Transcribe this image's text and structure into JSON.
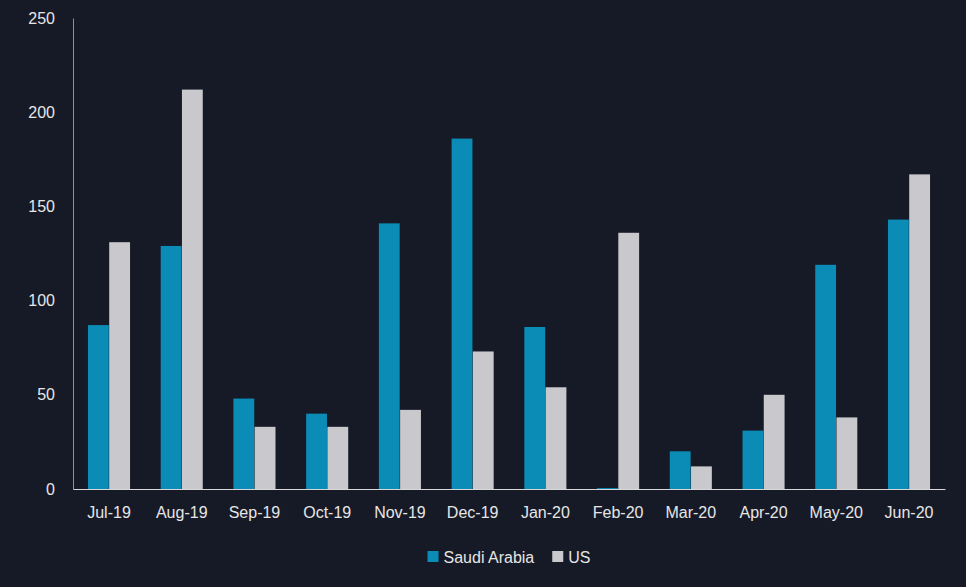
{
  "chart_data": {
    "type": "bar",
    "categories": [
      "Jul-19",
      "Aug-19",
      "Sep-19",
      "Oct-19",
      "Nov-19",
      "Dec-19",
      "Jan-20",
      "Feb-20",
      "Mar-20",
      "Apr-20",
      "May-20",
      "Jun-20"
    ],
    "series": [
      {
        "name": "Saudi Arabia",
        "color": "#0a8cb6",
        "values": [
          87,
          129,
          48,
          40,
          141,
          186,
          86,
          0.5,
          20,
          31,
          119,
          143
        ]
      },
      {
        "name": "US",
        "color": "#c9c9cd",
        "values": [
          131,
          212,
          33,
          33,
          42,
          73,
          54,
          136,
          12,
          50,
          38,
          167
        ]
      }
    ],
    "ylim": [
      0,
      250
    ],
    "yticks": [
      0,
      50,
      100,
      150,
      200,
      250
    ],
    "grid": false,
    "legend": "bottom"
  }
}
